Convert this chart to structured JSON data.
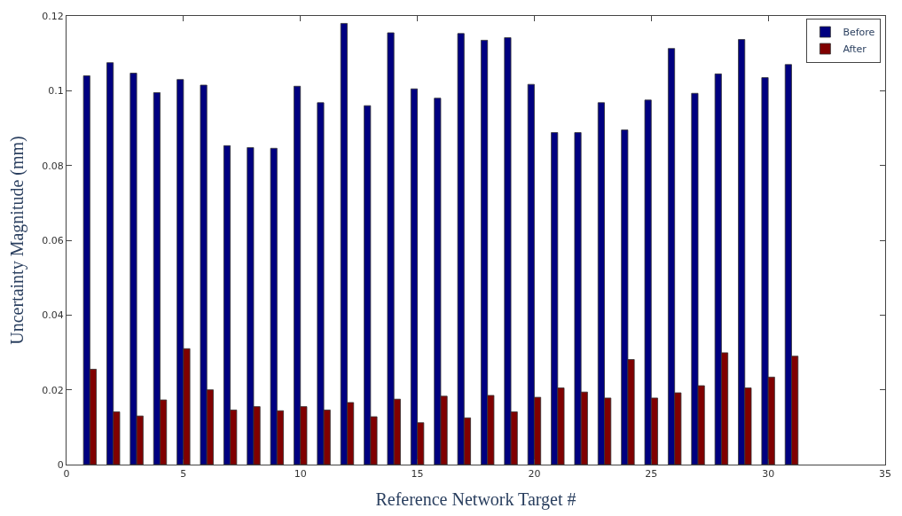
{
  "chart_data": {
    "type": "bar",
    "xlabel": "Reference Network Target #",
    "ylabel": "Uncertainty Magnitude (mm)",
    "x": [
      1,
      2,
      3,
      4,
      5,
      6,
      7,
      8,
      9,
      10,
      11,
      12,
      13,
      14,
      15,
      16,
      17,
      18,
      19,
      20,
      21,
      22,
      23,
      24,
      25,
      26,
      27,
      28,
      29,
      30,
      31
    ],
    "series": [
      {
        "name": "Before",
        "color": "#000080",
        "values": [
          0.104,
          0.1075,
          0.1047,
          0.0995,
          0.103,
          0.1015,
          0.0853,
          0.0848,
          0.0846,
          0.1012,
          0.0968,
          0.118,
          0.096,
          0.1155,
          0.1005,
          0.098,
          0.1153,
          0.1135,
          0.1142,
          0.1017,
          0.0888,
          0.0888,
          0.0968,
          0.0895,
          0.0975,
          0.1113,
          0.0993,
          0.1045,
          0.1137,
          0.1035,
          0.107
        ]
      },
      {
        "name": "After",
        "color": "#800000",
        "values": [
          0.0255,
          0.0141,
          0.013,
          0.0173,
          0.031,
          0.02,
          0.0146,
          0.0155,
          0.0144,
          0.0155,
          0.0146,
          0.0166,
          0.0128,
          0.0175,
          0.0112,
          0.0183,
          0.0125,
          0.0185,
          0.0141,
          0.018,
          0.0205,
          0.0194,
          0.0178,
          0.0281,
          0.0178,
          0.0192,
          0.0211,
          0.0299,
          0.0205,
          0.0234,
          0.029
        ]
      }
    ],
    "xlim": [
      0,
      35
    ],
    "xticks": [
      0,
      5,
      10,
      15,
      20,
      25,
      30,
      35
    ],
    "ylim": [
      0,
      0.12
    ],
    "yticks": [
      0,
      0.02,
      0.04,
      0.06,
      0.08,
      0.1,
      0.12
    ],
    "legend": "top right"
  }
}
